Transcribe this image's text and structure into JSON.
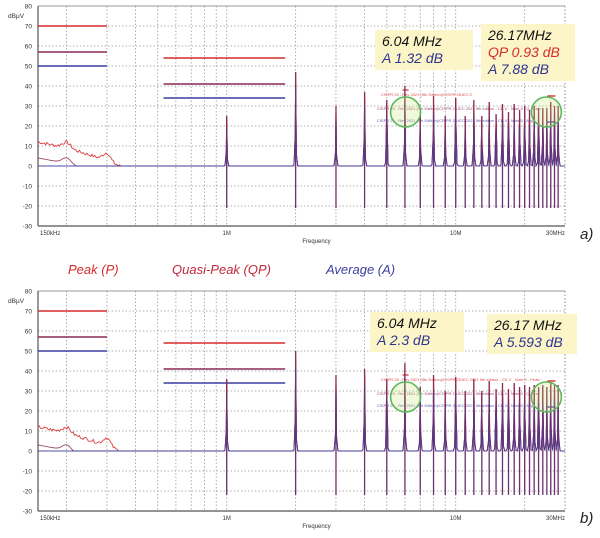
{
  "colors": {
    "peak": "#d62b2b",
    "qp": "#8b2a55",
    "avg": "#3a3f9e",
    "circle": "#5cb85c",
    "grid": "#999999",
    "annotation_bg": "#fbf5c8"
  },
  "legend": {
    "peak": "Peak (P)",
    "qp": "Quasi-Peak (QP)",
    "avg": "Average (A)"
  },
  "chart_data": [
    {
      "id": "a",
      "type": "line",
      "panel_label": "a)",
      "xlabel": "Frequency",
      "ylabel": "dBµV",
      "xscale": "log",
      "xlim_mhz": [
        0.15,
        30
      ],
      "ylim": [
        -30,
        80
      ],
      "yticks": [
        80,
        70,
        60,
        50,
        40,
        30,
        20,
        10,
        0,
        -10,
        -20,
        -30
      ],
      "xtick_labels": [
        {
          "mhz": 0.15,
          "label": "150kHz"
        },
        {
          "mhz": 1,
          "label": "1M"
        },
        {
          "mhz": 10,
          "label": "10M"
        },
        {
          "mhz": 30,
          "label": "30MHz"
        }
      ],
      "grid": true,
      "limits": [
        {
          "series": "peak",
          "segments": [
            {
              "from_mhz": 0.15,
              "to_mhz": 0.3,
              "db": 70
            },
            {
              "from_mhz": 0.53,
              "to_mhz": 1.8,
              "db": 54
            }
          ]
        },
        {
          "series": "qp",
          "segments": [
            {
              "from_mhz": 0.15,
              "to_mhz": 0.3,
              "db": 57
            },
            {
              "from_mhz": 0.53,
              "to_mhz": 1.8,
              "db": 41
            }
          ]
        },
        {
          "series": "avg",
          "segments": [
            {
              "from_mhz": 0.15,
              "to_mhz": 0.3,
              "db": 50
            },
            {
              "from_mhz": 0.53,
              "to_mhz": 1.8,
              "db": 34
            }
          ]
        }
      ],
      "noise_floor_db": {
        "peak": -10,
        "qp": -16,
        "avg": -21
      },
      "harmonics_mhz": [
        1,
        2,
        3,
        4,
        5,
        6,
        7,
        8,
        9,
        10,
        11,
        12,
        13,
        14,
        15,
        16,
        17,
        18,
        19,
        20,
        21,
        22,
        23,
        24,
        25,
        26,
        27,
        28
      ],
      "harmonic_peak_db": [
        25,
        47,
        30,
        37,
        33,
        40,
        27,
        35,
        25,
        34,
        25,
        33,
        25,
        32,
        26,
        31,
        27,
        31,
        28,
        30,
        28,
        30,
        29,
        29,
        29,
        32,
        30,
        30
      ],
      "limit_band_texts": [
        "CISPR 25 - Rev 2021 (5th Edition)/CISPR 25:IEC:2",
        "CISPR 25 - Rev 2021 (5th Edition)/CISPR 25:IEC 2021 5th edition - CE-V - Note 5 - Q-Peak/",
        "CISPR 25 - Rev 2021 (5th Edition)/CISPR 25:IEC 2021 5th edition - CE-V - Note 5 - Avg"
      ],
      "annotations": [
        {
          "freq": "6.04 MHz",
          "lines": [
            {
              "text": "A 1.32 dB",
              "series": "avg"
            }
          ]
        },
        {
          "freq": "26.17MHz",
          "lines": [
            {
              "text": "QP 0.93 dB",
              "series": "peak"
            },
            {
              "text": "A 7.88 dB",
              "series": "avg"
            }
          ]
        }
      ],
      "circled_mhz": [
        6.04,
        26.17
      ]
    },
    {
      "id": "b",
      "type": "line",
      "panel_label": "b)",
      "xlabel": "Frequency",
      "ylabel": "dBµV",
      "xscale": "log",
      "xlim_mhz": [
        0.15,
        30
      ],
      "ylim": [
        -30,
        80
      ],
      "yticks": [
        80,
        70,
        60,
        50,
        40,
        30,
        20,
        10,
        0,
        -10,
        -20,
        -30
      ],
      "xtick_labels": [
        {
          "mhz": 0.15,
          "label": "150kHz"
        },
        {
          "mhz": 1,
          "label": "1M"
        },
        {
          "mhz": 10,
          "label": "10M"
        },
        {
          "mhz": 30,
          "label": "30MHz"
        }
      ],
      "grid": true,
      "limits": [
        {
          "series": "peak",
          "segments": [
            {
              "from_mhz": 0.15,
              "to_mhz": 0.3,
              "db": 70
            },
            {
              "from_mhz": 0.53,
              "to_mhz": 1.8,
              "db": 54
            }
          ]
        },
        {
          "series": "qp",
          "segments": [
            {
              "from_mhz": 0.15,
              "to_mhz": 0.3,
              "db": 57
            },
            {
              "from_mhz": 0.53,
              "to_mhz": 1.8,
              "db": 41
            }
          ]
        },
        {
          "series": "avg",
          "segments": [
            {
              "from_mhz": 0.15,
              "to_mhz": 0.3,
              "db": 50
            },
            {
              "from_mhz": 0.53,
              "to_mhz": 1.8,
              "db": 34
            }
          ]
        }
      ],
      "noise_floor_db": {
        "peak": -10,
        "qp": -17,
        "avg": -22
      },
      "harmonics_mhz": [
        1,
        2,
        3,
        4,
        5,
        6,
        7,
        8,
        9,
        10,
        11,
        12,
        13,
        14,
        15,
        16,
        17,
        18,
        19,
        20,
        21,
        22,
        23,
        24,
        25,
        26,
        27,
        28
      ],
      "harmonic_peak_db": [
        36,
        50,
        38,
        41,
        36,
        44,
        32,
        38,
        30,
        37,
        30,
        36,
        30,
        35,
        31,
        34,
        31,
        34,
        32,
        33,
        32,
        33,
        32,
        33,
        32,
        34,
        33,
        33
      ],
      "limit_band_texts": [
        "CISPR 25 - Rev 2021 (5th Edition)/CISPR 25:IEC 2021 5th edition - CE-V - Note 5 - Peak/",
        "CISPR 25 - Rev 2021 (5th Edition)/CISPR 25:IEC 2021 5th edition - CE-V - Note 5 - Q-Peak",
        "CISPR 25 - Rev 2021 (5th Edition)/CISPR 25:IEC 2021 5th edition - CE-V - Note 5 - Avg"
      ],
      "annotations": [
        {
          "freq": "6.04 MHz",
          "lines": [
            {
              "text": "A 2.3 dB",
              "series": "avg"
            }
          ]
        },
        {
          "freq": "26.17 MHz",
          "lines": [
            {
              "text": "A 5.593 dB",
              "series": "avg"
            }
          ]
        }
      ],
      "circled_mhz": [
        6.04,
        26.17
      ]
    }
  ]
}
